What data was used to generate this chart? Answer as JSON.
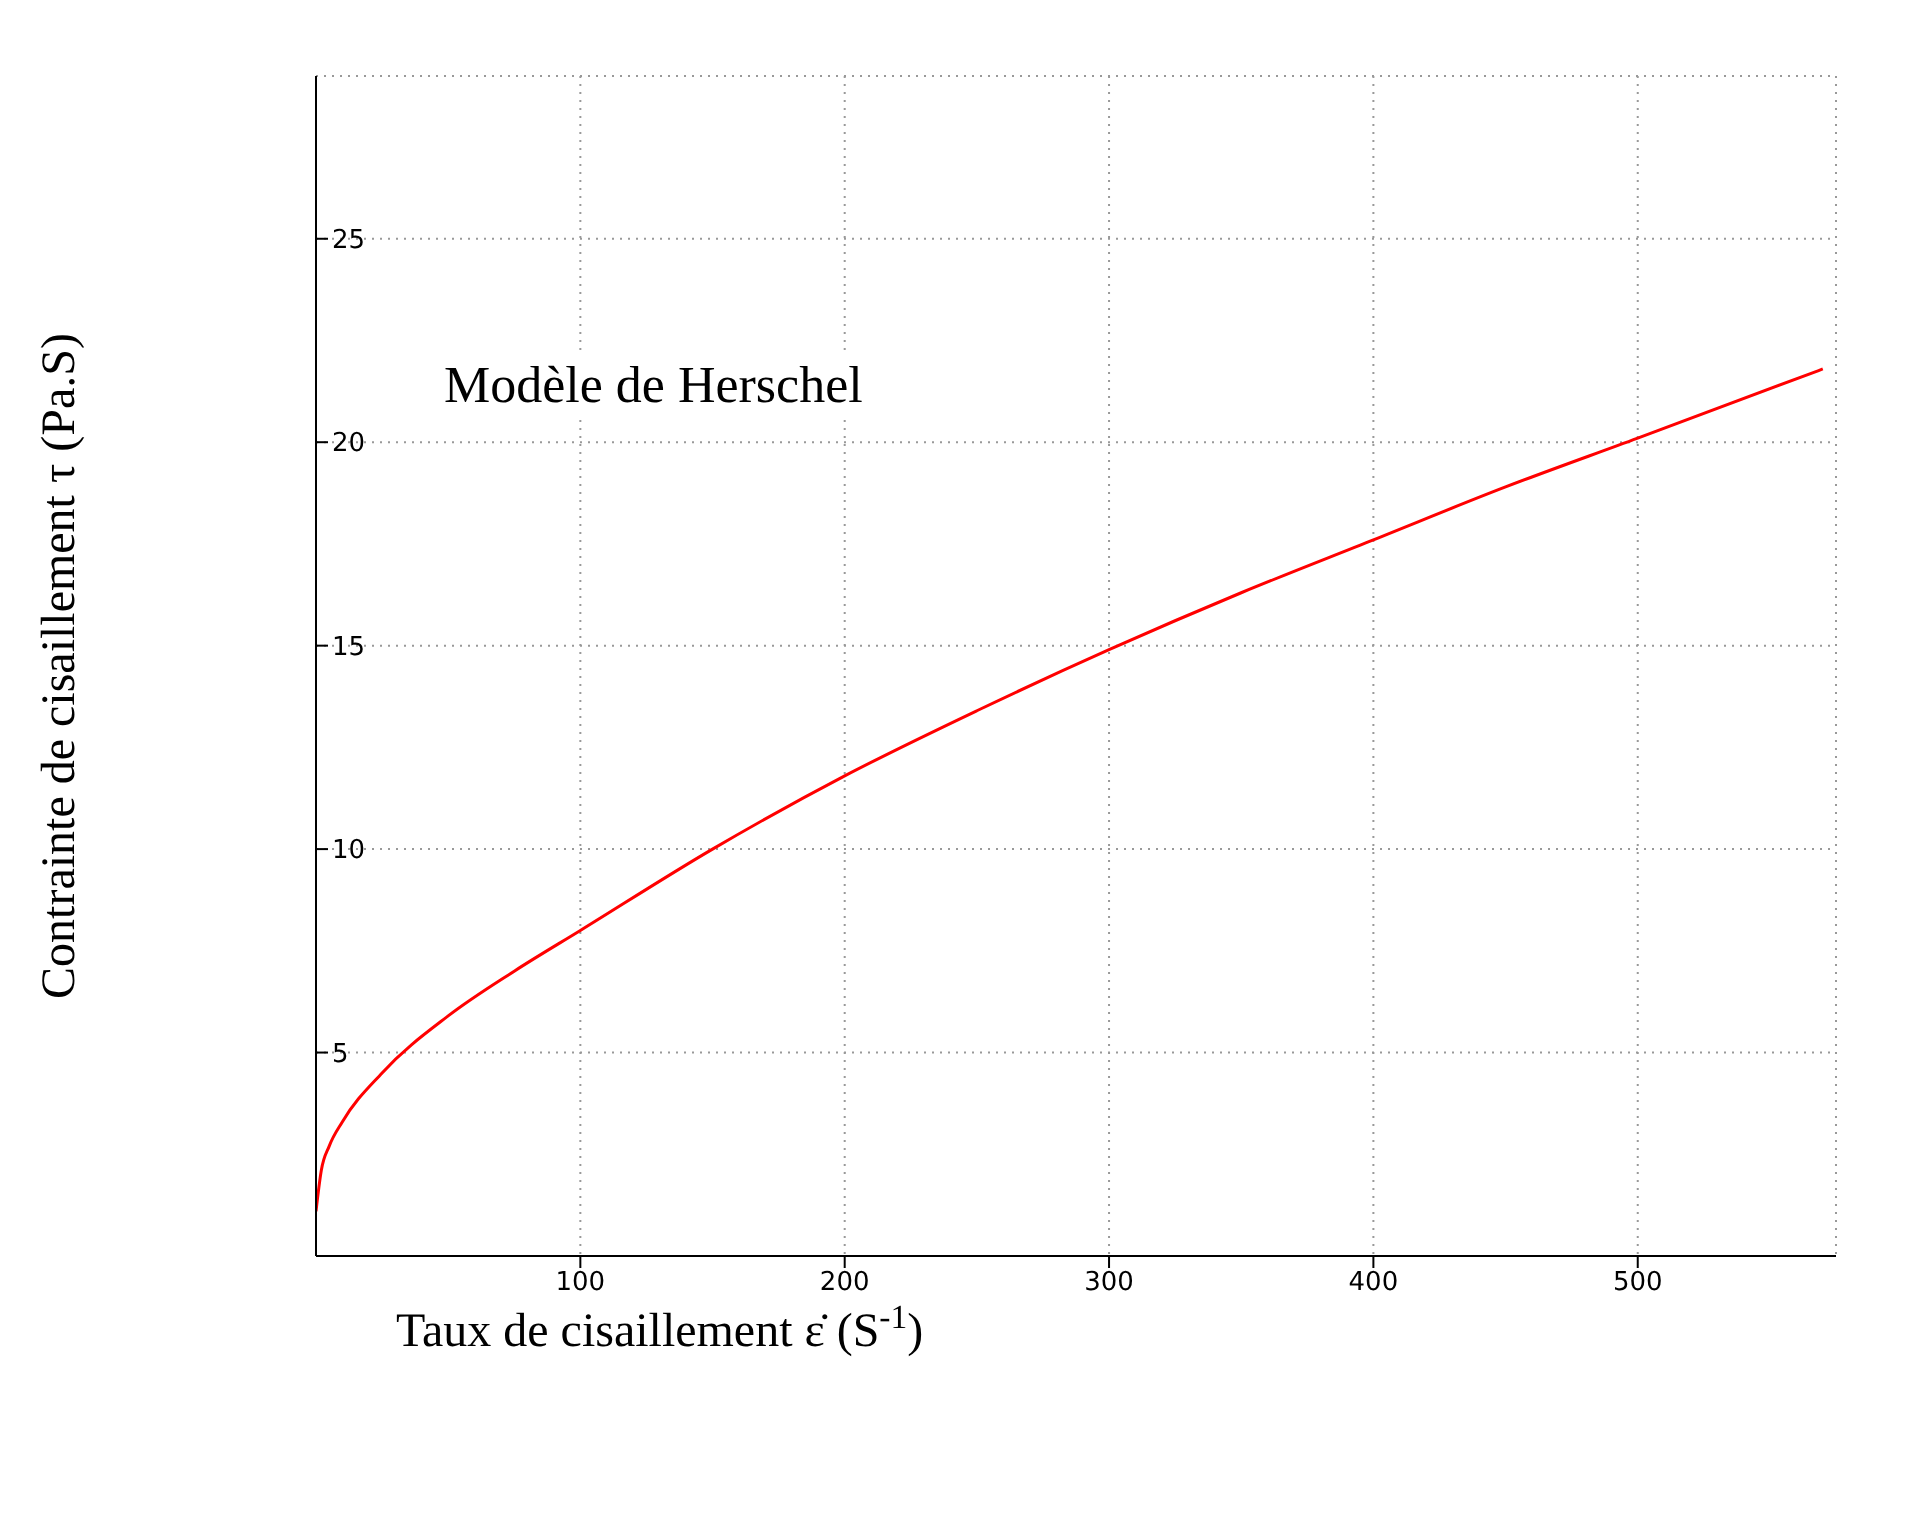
{
  "chart_data": {
    "type": "line",
    "xlabel": "Taux de cisaillement ε̇ (S$^{-1}$)",
    "ylabel": "Contrainte de cisaillement τ (Pa.S)",
    "annotations": [
      "Modèle de Herschel"
    ],
    "x": [
      0,
      2,
      5,
      10,
      25,
      50,
      75,
      100,
      150,
      200,
      250,
      300,
      350,
      400,
      450,
      500,
      570
    ],
    "series": [
      {
        "color": "#ff0000",
        "values": [
          1.1,
          2.1,
          2.7,
          3.3,
          4.5,
          5.9,
          7.0,
          8.0,
          10.0,
          11.8,
          13.4,
          14.9,
          16.3,
          17.6,
          18.9,
          20.1,
          21.8
        ]
      }
    ],
    "xlim": [
      0,
      575
    ],
    "ylim": [
      0,
      29
    ],
    "xticks": [
      100,
      200,
      300,
      400,
      500
    ],
    "yticks": [
      5,
      10,
      15,
      20,
      25
    ],
    "grid": true,
    "marker": "none",
    "line_style": "solid"
  }
}
